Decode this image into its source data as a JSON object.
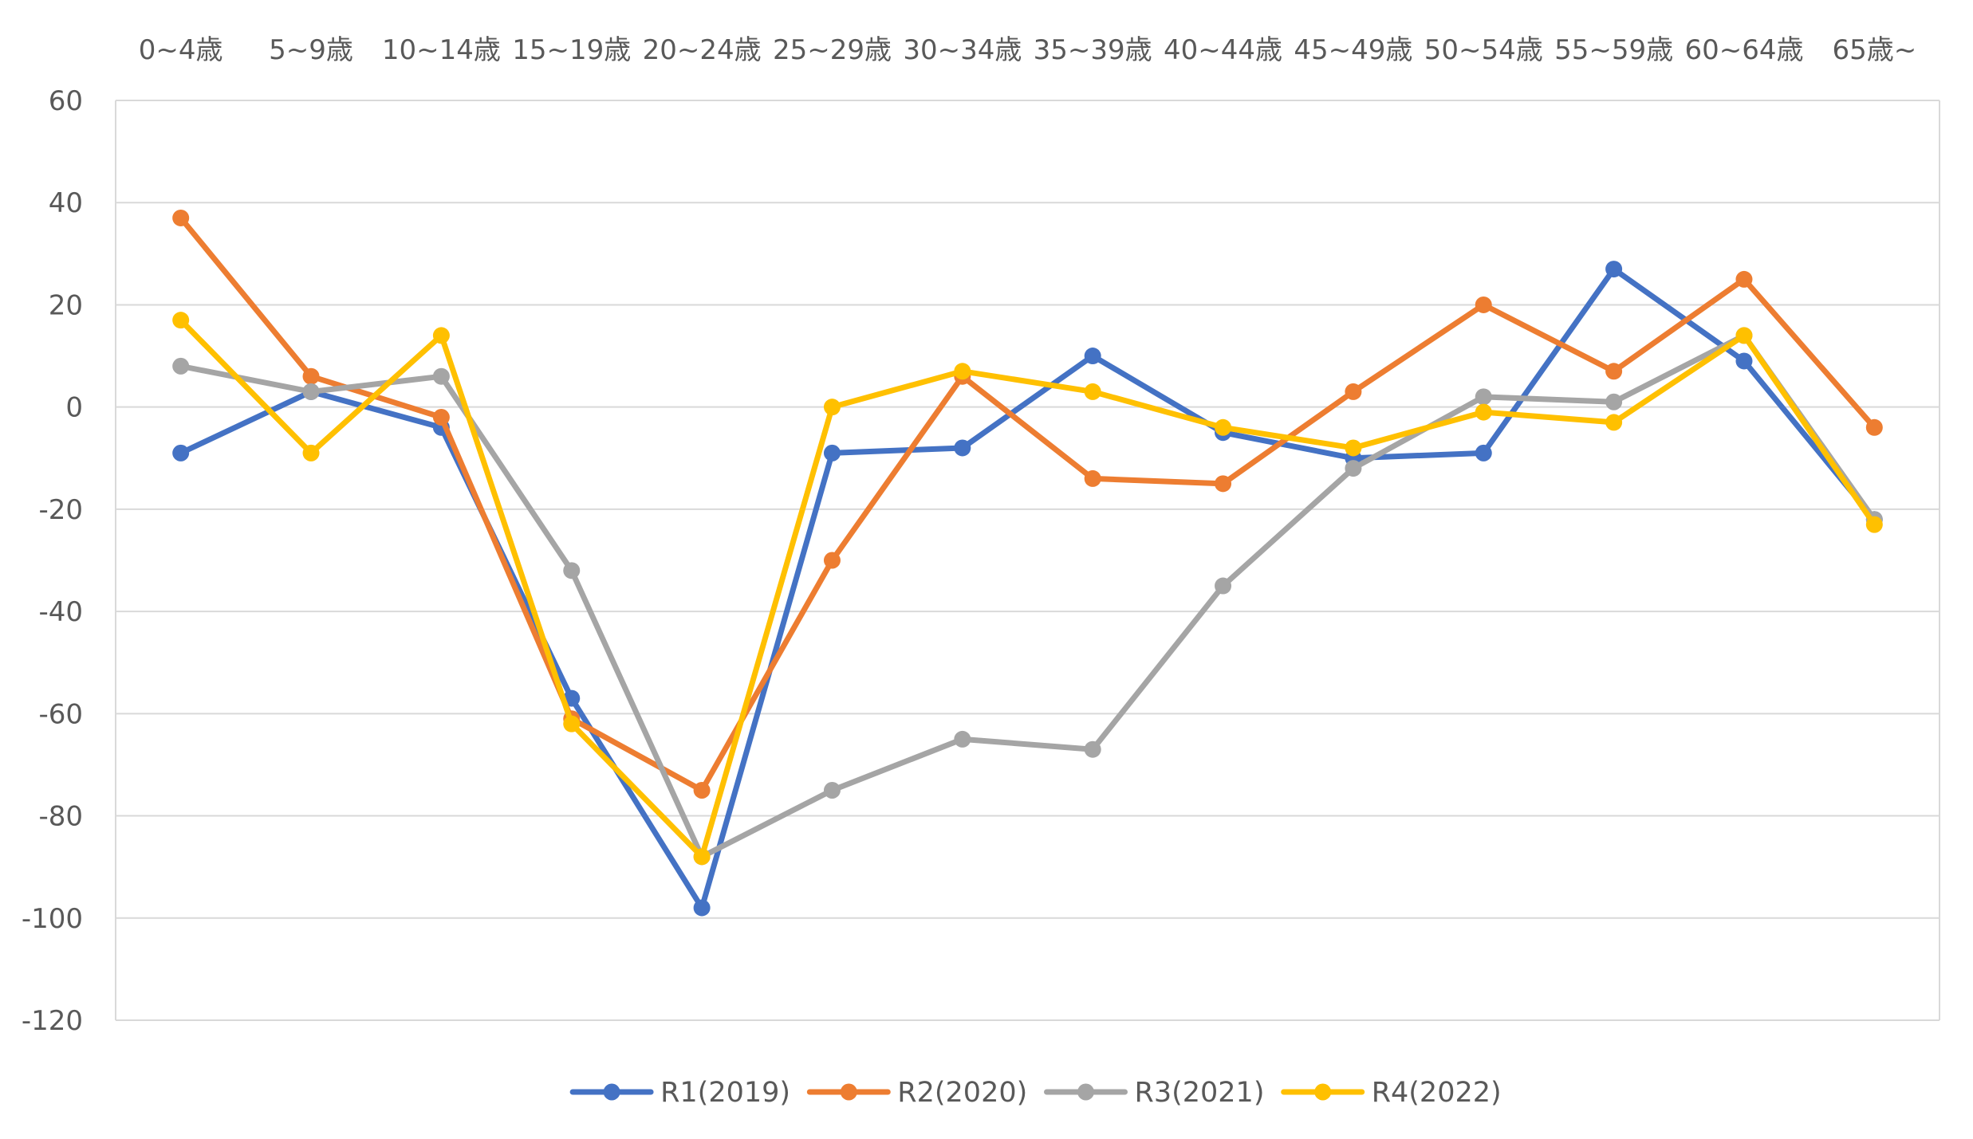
{
  "chart_data": {
    "type": "line",
    "title": "",
    "xlabel": "",
    "ylabel": "",
    "categories": [
      "0~4歳",
      "5~9歳",
      "10~14歳",
      "15~19歳",
      "20~24歳",
      "25~29歳",
      "30~34歳",
      "35~39歳",
      "40~44歳",
      "45~49歳",
      "50~54歳",
      "55~59歳",
      "60~64歳",
      "65歳~"
    ],
    "x_axis_position": "top",
    "ylim": [
      -120,
      60
    ],
    "y_ticks": [
      60,
      40,
      20,
      0,
      -20,
      -40,
      -60,
      -80,
      -100,
      -120
    ],
    "y_tick_labels": [
      "60",
      "40",
      "20",
      "0",
      "-20",
      "-40",
      "-60",
      "-80",
      "-100",
      "-120"
    ],
    "grid": true,
    "legend_position": "bottom",
    "series": [
      {
        "name": "R1(2019)",
        "color": "#4472C4",
        "values": [
          -9,
          3,
          -4,
          -57,
          -98,
          -9,
          -8,
          10,
          -5,
          -10,
          -9,
          27,
          9,
          -22
        ]
      },
      {
        "name": "R2(2020)",
        "color": "#ED7D31",
        "values": [
          37,
          6,
          -2,
          -61,
          -75,
          -30,
          6,
          -14,
          -15,
          3,
          20,
          7,
          25,
          -4
        ]
      },
      {
        "name": "R3(2021)",
        "color": "#A5A5A5",
        "values": [
          8,
          3,
          6,
          -32,
          -88,
          -75,
          -65,
          -67,
          -35,
          -12,
          2,
          1,
          14,
          -22
        ]
      },
      {
        "name": "R4(2022)",
        "color": "#FFC000",
        "values": [
          17,
          -9,
          14,
          -62,
          -88,
          0,
          7,
          3,
          -4,
          -8,
          -1,
          -3,
          14,
          -23
        ]
      }
    ]
  }
}
